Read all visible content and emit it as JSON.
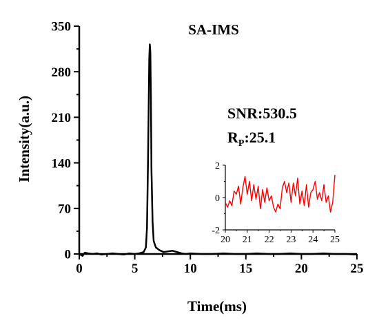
{
  "chart_data": [
    {
      "type": "line",
      "title": "SA-IMS",
      "xlabel": "Time(ms)",
      "ylabel": "Intensity(a.u.)",
      "xlim": [
        0,
        25
      ],
      "ylim": [
        0,
        350
      ],
      "xticks": [
        "0",
        "5",
        "10",
        "15",
        "20",
        "25"
      ],
      "yticks": [
        "0",
        "70",
        "140",
        "210",
        "280",
        "350"
      ],
      "annotations": {
        "snr": "SNR:530.5",
        "rp_main": "R",
        "rp_sub": "P",
        "rp_value": ":25.1"
      },
      "series": [
        {
          "color": "#000000",
          "x": [
            0,
            0.3,
            0.5,
            0.8,
            1.2,
            1.6,
            2,
            2.5,
            3,
            3.5,
            4,
            4.5,
            5,
            5.4,
            5.8,
            6.0,
            6.1,
            6.2,
            6.3,
            6.35,
            6.4,
            6.45,
            6.5,
            6.6,
            6.7,
            6.9,
            7.2,
            7.6,
            8.0,
            8.4,
            8.8,
            9.2,
            9.6,
            10,
            11,
            12,
            13,
            14,
            15,
            16,
            17,
            18,
            19,
            20,
            21,
            22,
            23,
            24,
            25
          ],
          "y": [
            0,
            -3,
            2,
            1,
            0,
            1,
            -1,
            0,
            1,
            0,
            -1,
            1,
            0,
            1,
            3,
            10,
            40,
            150,
            300,
            322,
            310,
            240,
            130,
            50,
            20,
            10,
            6,
            3,
            4,
            5,
            3,
            1,
            0,
            1,
            0,
            0,
            1,
            0,
            0,
            1,
            0,
            0,
            1,
            0,
            0,
            1,
            0,
            0,
            -1
          ]
        }
      ]
    },
    {
      "type": "line",
      "xlim": [
        20,
        25
      ],
      "ylim": [
        -2,
        2
      ],
      "xticks": [
        "20",
        "21",
        "22",
        "23",
        "24",
        "25"
      ],
      "yticks": [
        "-2",
        "0",
        "2"
      ],
      "series": [
        {
          "color": "#ff0000",
          "x": [
            20,
            20.1,
            20.2,
            20.3,
            20.4,
            20.5,
            20.6,
            20.7,
            20.8,
            20.9,
            21,
            21.1,
            21.2,
            21.3,
            21.4,
            21.5,
            21.6,
            21.7,
            21.8,
            21.9,
            22,
            22.1,
            22.2,
            22.3,
            22.4,
            22.5,
            22.6,
            22.7,
            22.8,
            22.9,
            23,
            23.1,
            23.2,
            23.3,
            23.4,
            23.5,
            23.6,
            23.7,
            23.8,
            23.9,
            24,
            24.1,
            24.2,
            24.3,
            24.4,
            24.5,
            24.6,
            24.7,
            24.8,
            24.9,
            25
          ],
          "y": [
            -0.3,
            -0.6,
            -0.2,
            -0.5,
            0.4,
            0.2,
            0.7,
            -0.4,
            0.6,
            1.3,
            0.2,
            1.0,
            -0.2,
            0.8,
            -0.1,
            0.7,
            -0.7,
            0.5,
            -0.3,
            0.6,
            -0.2,
            0.1,
            -0.6,
            -0.9,
            -0.4,
            -0.7,
            0.6,
            1.0,
            0.3,
            0.9,
            -0.3,
            0.9,
            0.1,
            1.2,
            -0.4,
            0.4,
            -0.5,
            0.8,
            -0.6,
            0.3,
            0.5,
            1.0,
            -0.1,
            0.3,
            -0.2,
            0.8,
            -0.3,
            0.1,
            -0.9,
            -0.3,
            1.4
          ]
        }
      ]
    }
  ]
}
